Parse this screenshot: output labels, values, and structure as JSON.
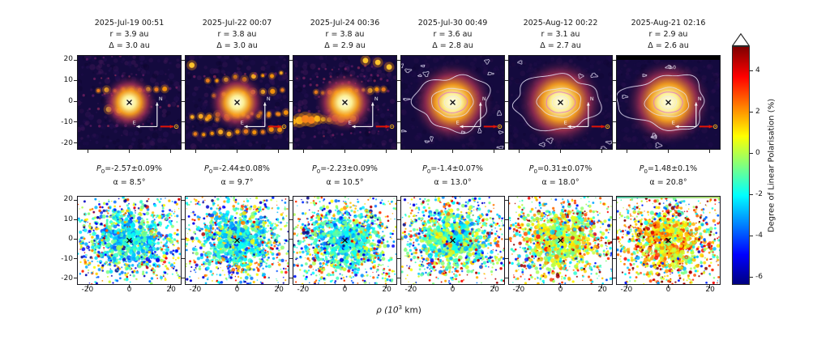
{
  "figure": {
    "xlabel": {
      "prefix": "ρ (10",
      "sup": "3",
      "suffix": " km)"
    },
    "axis": {
      "x_ticks": [
        "-20",
        "0",
        "20"
      ],
      "y_ticks": [
        "20",
        "10",
        "0",
        "-10",
        "-20"
      ]
    },
    "labels": {
      "p0_prefix": "P",
      "p0_sub": "0",
      "alpha_prefix": "α = "
    },
    "compass": {
      "north": "N",
      "east": "E",
      "sun_symbol": "anti-solar-arrow"
    },
    "colors": {
      "intensity_background": "#140a3e",
      "intensity_core": "#fcffa4",
      "trail_orange": "#f9950a",
      "contour_white": "#e9e4fa",
      "contour_pink": "#e071ce",
      "antisolar_arrow_red": "#e31507",
      "sun_marker_yellow": "#f2b31c",
      "marker_black": "#0a0a0a"
    }
  },
  "colorbar": {
    "label": "Degree of Linear Polarisation (%)",
    "ticks": [
      "4",
      "2",
      "0",
      "-2",
      "-4",
      "-6"
    ],
    "vmax": 5.2,
    "vmin": -6.4,
    "extend_top_triangle": "white"
  },
  "chart_data": {
    "type": "heatmap",
    "layout": "2 rows x 6 columns of sky maps; top row: intensity images of the comet (inferno colormap, white brightness contours in last 3 epochs); bottom row: degree of linear polarisation maps sharing one jet-style colorbar",
    "xlabel": "ρ (10³ km)",
    "x_ticks": [
      -20,
      0,
      20
    ],
    "y_ticks": [
      20,
      10,
      0,
      -10,
      -20
    ],
    "x_range": [
      -25,
      25
    ],
    "y_range": [
      -23,
      22
    ],
    "colorbar_label": "Degree of Linear Polarisation (%)",
    "colorbar_ticks": [
      4,
      2,
      0,
      -2,
      -4,
      -6
    ],
    "panels": [
      {
        "date": "2025-Jul-19 00:51",
        "r": "r = 3.9 au",
        "delta": "Δ = 3.0 au",
        "P0": "=-2.57±0.09%",
        "alpha": "8.5°",
        "values": {
          "r_au": 3.9,
          "delta_au": 3.0,
          "P0_pct": -2.57,
          "P0_err": 0.09,
          "alpha_deg": 8.5
        },
        "style": {
          "trails": true,
          "contours": false,
          "band": false,
          "tail": 0,
          "blobs": [
            [
              0.3,
              0.575
            ],
            [
              0.4,
              0.59
            ]
          ],
          "glow": 0.115,
          "cblobs": 0,
          "black_top": false,
          "contour_label": null,
          "top_line": null,
          "seed": 1
        }
      },
      {
        "date": "2025-Jul-22 00:07",
        "r": "r = 3.8 au",
        "delta": "Δ = 3.0 au",
        "P0": "=-2.44±0.08%",
        "alpha": "9.7°",
        "values": {
          "r_au": 3.8,
          "delta_au": 3.0,
          "P0_pct": -2.44,
          "P0_err": 0.08,
          "alpha_deg": 9.7
        },
        "style": {
          "trails": true,
          "contours": false,
          "band": false,
          "tail": 0,
          "blobs": [
            [
              0.06,
              0.1
            ]
          ],
          "glow": 0.12,
          "cblobs": 0,
          "black_top": false,
          "contour_label": null,
          "top_line": null,
          "seed": 2
        }
      },
      {
        "date": "2025-Jul-24 00:36",
        "r": "r = 3.8 au",
        "delta": "Δ = 2.9 au",
        "P0": "=-2.23±0.09%",
        "alpha": "10.5°",
        "values": {
          "r_au": 3.8,
          "delta_au": 2.9,
          "P0_pct": -2.23,
          "P0_err": 0.09,
          "alpha_deg": 10.5
        },
        "style": {
          "trails": true,
          "contours": false,
          "band": true,
          "tail": 0,
          "blobs": [
            [
              0.82,
              0.07
            ],
            [
              0.93,
              0.12
            ],
            [
              0.7,
              0.05
            ]
          ],
          "glow": 0.125,
          "cblobs": 0,
          "black_top": false,
          "contour_label": null,
          "top_line": null,
          "seed": 3
        }
      },
      {
        "date": "2025-Jul-30 00:49",
        "r": "r = 3.6 au",
        "delta": "Δ = 2.8 au",
        "P0": "=-1.4±0.07%",
        "alpha": "13.0°",
        "values": {
          "r_au": 3.6,
          "delta_au": 2.8,
          "P0_pct": -1.4,
          "P0_err": 0.07,
          "alpha_deg": 13.0
        },
        "style": {
          "trails": false,
          "contours": true,
          "band": false,
          "tail": 0.12,
          "blobs": [],
          "glow": 0.17,
          "cblobs": 16,
          "black_top": false,
          "contour_label": null,
          "top_line": null,
          "seed": 4
        }
      },
      {
        "date": "2025-Aug-12 00:22",
        "r": "r = 3.1 au",
        "delta": "Δ = 2.7 au",
        "P0": "=0.31±0.07%",
        "alpha": "18.0°",
        "values": {
          "r_au": 3.1,
          "delta_au": 2.7,
          "P0_pct": 0.31,
          "P0_err": 0.07,
          "alpha_deg": 18.0
        },
        "style": {
          "trails": false,
          "contours": true,
          "band": false,
          "tail": 0.5,
          "blobs": [],
          "glow": 0.18,
          "cblobs": 7,
          "black_top": false,
          "contour_label": null,
          "top_line": null,
          "seed": 5
        }
      },
      {
        "date": "2025-Aug-21 02:16",
        "r": "r = 2.9 au",
        "delta": "Δ = 2.6 au",
        "P0": "=1.48±0.1%",
        "alpha": "20.8°",
        "values": {
          "r_au": 2.9,
          "delta_au": 2.6,
          "P0_pct": 1.48,
          "P0_err": 0.1,
          "alpha_deg": 20.8
        },
        "style": {
          "trails": false,
          "contours": true,
          "band": false,
          "tail": 0.45,
          "blobs": [],
          "glow": 0.18,
          "cblobs": 6,
          "black_top": true,
          "contour_label": "0.0",
          "top_line": "#18b585",
          "seed": 6
        }
      }
    ]
  }
}
